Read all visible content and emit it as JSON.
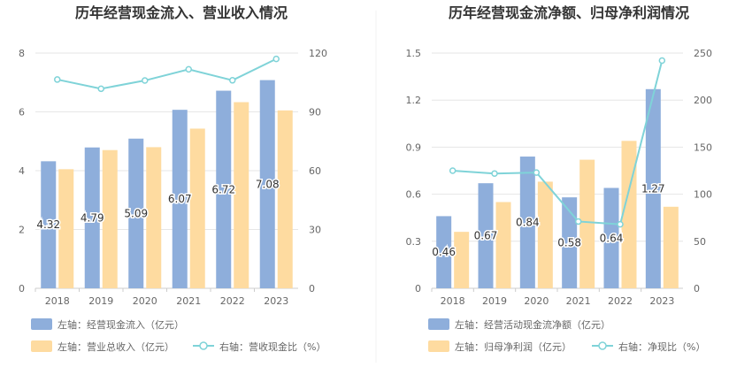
{
  "colors": {
    "bar_primary": "#8eaedb",
    "bar_secondary": "#fedba0",
    "line": "#7fd3d8",
    "axis_text": "#666666",
    "grid": "#e6e6e6",
    "title": "#333333",
    "legend_text": "#666666",
    "label_text": "#333333"
  },
  "chart_data": [
    {
      "type": "bar",
      "title": "历年经营现金流入、营业收入情况",
      "categories": [
        "2018",
        "2019",
        "2020",
        "2021",
        "2022",
        "2023"
      ],
      "left_axis": {
        "ylim": [
          0,
          8
        ],
        "ticks": [
          "0",
          "2",
          "4",
          "6",
          "8"
        ]
      },
      "right_axis": {
        "ylim": [
          0,
          120
        ],
        "ticks": [
          "0",
          "30",
          "60",
          "90",
          "120"
        ]
      },
      "series": [
        {
          "name": "左轴：经营现金流入（亿元）",
          "axis": "left",
          "kind": "bar",
          "values": [
            4.32,
            4.79,
            5.09,
            6.07,
            6.72,
            7.08
          ],
          "labels": [
            "4.32",
            "4.79",
            "5.09",
            "6.07",
            "6.72",
            "7.08"
          ]
        },
        {
          "name": "左轴：营业总收入（亿元）",
          "axis": "left",
          "kind": "bar",
          "values": [
            4.05,
            4.7,
            4.8,
            5.43,
            6.33,
            6.05
          ]
        },
        {
          "name": "右轴：营收现金比（%）",
          "axis": "right",
          "kind": "line",
          "values": [
            106.5,
            101.8,
            106.0,
            111.7,
            106.1,
            117.0
          ]
        }
      ],
      "grid": true,
      "legend_position": "bottom"
    },
    {
      "type": "bar",
      "title": "历年经营现金流净额、归母净利润情况",
      "categories": [
        "2018",
        "2019",
        "2020",
        "2021",
        "2022",
        "2023"
      ],
      "left_axis": {
        "ylim": [
          0,
          1.5
        ],
        "ticks": [
          "0",
          "0.3",
          "0.6",
          "0.9",
          "1.2",
          "1.5"
        ]
      },
      "right_axis": {
        "ylim": [
          0,
          250
        ],
        "ticks": [
          "0",
          "50",
          "100",
          "150",
          "200",
          "250"
        ]
      },
      "series": [
        {
          "name": "左轴：经营活动现金流净额（亿元）",
          "axis": "left",
          "kind": "bar",
          "values": [
            0.46,
            0.67,
            0.84,
            0.58,
            0.64,
            1.27
          ],
          "labels": [
            "0.46",
            "0.67",
            "0.84",
            "0.58",
            "0.64",
            "1.27"
          ]
        },
        {
          "name": "左轴：归母净利润（亿元）",
          "axis": "left",
          "kind": "bar",
          "values": [
            0.36,
            0.55,
            0.68,
            0.82,
            0.94,
            0.52
          ]
        },
        {
          "name": "右轴：净现比（%）",
          "axis": "right",
          "kind": "line",
          "values": [
            125.0,
            122.0,
            123.0,
            71.0,
            68.0,
            242.0
          ]
        }
      ],
      "grid": true,
      "legend_position": "bottom"
    }
  ]
}
